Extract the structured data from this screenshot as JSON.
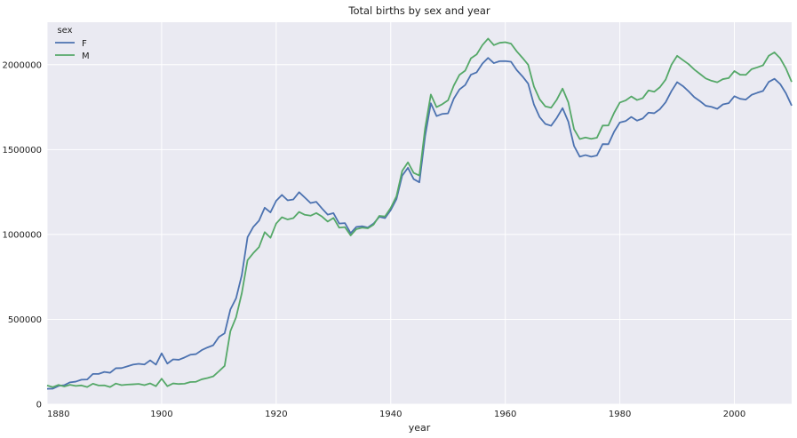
{
  "chart_data": {
    "type": "line",
    "title": "Total births by sex and year",
    "xlabel": "year",
    "ylabel": "",
    "xlim": [
      1880,
      2010
    ],
    "ylim": [
      0,
      2250000
    ],
    "xticks": [
      "1880",
      "1900",
      "1920",
      "1940",
      "1960",
      "1980",
      "2000"
    ],
    "yticks": [
      "0",
      "500000",
      "1000000",
      "1500000",
      "2000000"
    ],
    "grid": true,
    "legend": {
      "title": "sex",
      "placement": "top-left"
    },
    "colors": {
      "F": "#4c72b0",
      "M": "#55a868",
      "background": "#eaeaf2"
    },
    "x": [
      1880,
      1881,
      1882,
      1883,
      1884,
      1885,
      1886,
      1887,
      1888,
      1889,
      1890,
      1891,
      1892,
      1893,
      1894,
      1895,
      1896,
      1897,
      1898,
      1899,
      1900,
      1901,
      1902,
      1903,
      1904,
      1905,
      1906,
      1907,
      1908,
      1909,
      1910,
      1911,
      1912,
      1913,
      1914,
      1915,
      1916,
      1917,
      1918,
      1919,
      1920,
      1921,
      1922,
      1923,
      1924,
      1925,
      1926,
      1927,
      1928,
      1929,
      1930,
      1931,
      1932,
      1933,
      1934,
      1935,
      1936,
      1937,
      1938,
      1939,
      1940,
      1941,
      1942,
      1943,
      1944,
      1945,
      1946,
      1947,
      1948,
      1949,
      1950,
      1951,
      1952,
      1953,
      1954,
      1955,
      1956,
      1957,
      1958,
      1959,
      1960,
      1961,
      1962,
      1963,
      1964,
      1965,
      1966,
      1967,
      1968,
      1969,
      1970,
      1971,
      1972,
      1973,
      1974,
      1975,
      1976,
      1977,
      1978,
      1979,
      1980,
      1981,
      1982,
      1983,
      1984,
      1985,
      1986,
      1987,
      1988,
      1989,
      1990,
      1991,
      1992,
      1993,
      1994,
      1995,
      1996,
      1997,
      1998,
      1999,
      2000,
      2001,
      2002,
      2003,
      2004,
      2005,
      2006,
      2007,
      2008,
      2009,
      2010
    ],
    "series": [
      {
        "name": "F",
        "values": [
          90993,
          91954,
          107850,
          112321,
          129022,
          133055,
          144535,
          145982,
          178627,
          178366,
          190377,
          185482,
          212346,
          212906,
          222923,
          233630,
          237920,
          234202,
          258770,
          233022,
          299822,
          239351,
          264081,
          261962,
          275375,
          291642,
          295301,
          318558,
          334277,
          347191,
          396416,
          418180,
          557939,
          624317,
          761376,
          983823,
          1044249,
          1081194,
          1157585,
          1130149,
          1198214,
          1232845,
          1200796,
          1206239,
          1248821,
          1217217,
          1185078,
          1192207,
          1152836,
          1116284,
          1125521,
          1064233,
          1066930,
          1007523,
          1044716,
          1048395,
          1040892,
          1063881,
          1103858,
          1096286,
          1143377,
          1208160,
          1346226,
          1392604,
          1325982,
          1307115,
          1578216,
          1772811,
          1697098,
          1709949,
          1713189,
          1799215,
          1854020,
          1880317,
          1940837,
          1954896,
          2005926,
          2039962,
          2008882,
          2020301,
          2021101,
          2017008,
          1968094,
          1931014,
          1887722,
          1765045,
          1690927,
          1650690,
          1640041,
          1686951,
          1744226,
          1664788,
          1521302,
          1458053,
          1467439,
          1457745,
          1465096,
          1532074,
          1531624,
          1605193,
          1659460,
          1667618,
          1692122,
          1670519,
          1682949,
          1717522,
          1714032,
          1737994,
          1778837,
          1843416,
          1897006,
          1874215,
          1843152,
          1808452,
          1784930,
          1757766,
          1751419,
          1739800,
          1765997,
          1773049,
          1813914,
          1799049,
          1794327,
          1822125,
          1834459,
          1845176,
          1898463,
          1916888,
          1885780,
          1831382,
          1759010
        ]
      },
      {
        "name": "M",
        "values": [
          110490,
          100743,
          113686,
          104629,
          114445,
          107800,
          110784,
          101414,
          120851,
          110580,
          111025,
          101196,
          122038,
          112319,
          115775,
          117398,
          119575,
          112758,
          122693,
          106212,
          150499,
          106471,
          122659,
          119225,
          121101,
          130879,
          132291,
          146825,
          154330,
          163983,
          194201,
          225872,
          429948,
          512441,
          654749,
          848681,
          890035,
          925417,
          1013624,
          980234,
          1064478,
          1101335,
          1088213,
          1096257,
          1132672,
          1115813,
          1110498,
          1126014,
          1105208,
          1075734,
          1097285,
          1039922,
          1043218,
          994153,
          1031744,
          1040004,
          1035998,
          1057474,
          1109201,
          1106005,
          1156244,
          1225121,
          1373895,
          1424614,
          1362911,
          1346891,
          1625468,
          1823918,
          1749876,
          1767051,
          1789888,
          1876001,
          1940093,
          1964735,
          2037158,
          2060232,
          2115044,
          2153546,
          2115120,
          2128751,
          2132359,
          2123620,
          2078287,
          2040124,
          1998928,
          1871212,
          1796066,
          1754009,
          1746223,
          1794282,
          1859211,
          1778463,
          1619564,
          1562001,
          1570926,
          1563135,
          1569939,
          1641359,
          1641592,
          1716283,
          1776751,
          1789045,
          1812743,
          1791883,
          1802908,
          1848263,
          1840385,
          1867373,
          1912014,
          1998779,
          2052085,
          2027234,
          2003129,
          1971189,
          1945150,
          1918614,
          1905001,
          1896128,
          1914813,
          1920950,
          1962406,
          1940979,
          1940045,
          1973434,
          1984203,
          1996149,
          2052342,
          2072330,
          2037313,
          1977532,
          1898382
        ]
      }
    ]
  }
}
